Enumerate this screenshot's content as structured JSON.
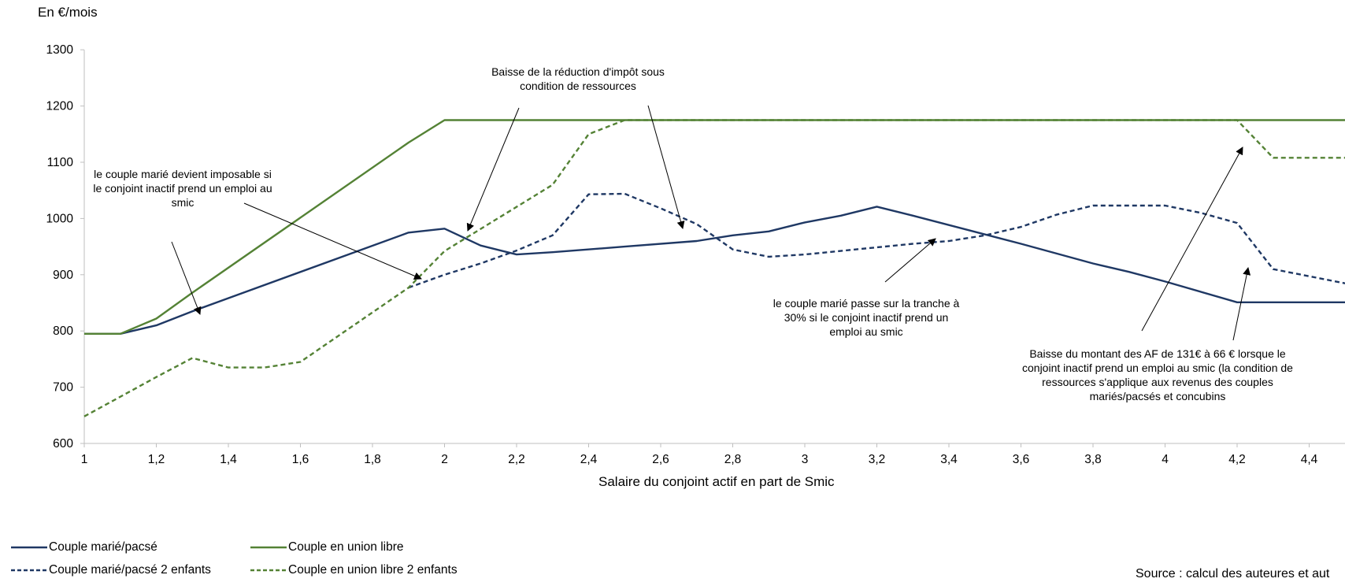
{
  "chart_data": {
    "type": "line",
    "ylabel": "En €/mois",
    "xlabel": "Salaire du conjoint actif en part de Smic",
    "xlim": [
      1,
      4.6
    ],
    "ylim": [
      600,
      1300
    ],
    "yticks": [
      600,
      700,
      800,
      900,
      1000,
      1100,
      1200,
      1300
    ],
    "xticks": [
      "1",
      "1,2",
      "1,4",
      "1,6",
      "1,8",
      "2",
      "2,2",
      "2,4",
      "2,6",
      "2,8",
      "3",
      "3,2",
      "3,4",
      "3,6",
      "3,8",
      "4",
      "4,2",
      "4,4"
    ],
    "xtick_values": [
      1,
      1.2,
      1.4,
      1.6,
      1.8,
      2,
      2.2,
      2.4,
      2.6,
      2.8,
      3,
      3.2,
      3.4,
      3.6,
      3.8,
      4,
      4.2,
      4.4
    ],
    "grid": false,
    "legend_position": "bottom",
    "series": [
      {
        "name": "Couple marié/pacsé",
        "color": "#1f3864",
        "dash": "solid",
        "points": [
          [
            1,
            795
          ],
          [
            1.1,
            795
          ],
          [
            1.2,
            810
          ],
          [
            1.3,
            835
          ],
          [
            1.9,
            975
          ],
          [
            2,
            982
          ],
          [
            2.1,
            952
          ],
          [
            2.2,
            936
          ],
          [
            2.3,
            940
          ],
          [
            2.5,
            950
          ],
          [
            2.7,
            960
          ],
          [
            2.8,
            970
          ],
          [
            2.9,
            977
          ],
          [
            3,
            993
          ],
          [
            3.1,
            1005
          ],
          [
            3.2,
            1021
          ],
          [
            3.3,
            1005
          ],
          [
            3.6,
            955
          ],
          [
            3.8,
            920
          ],
          [
            3.9,
            905
          ],
          [
            4,
            888
          ],
          [
            4.2,
            851
          ],
          [
            4.6,
            851
          ]
        ]
      },
      {
        "name": "Couple en union libre",
        "color": "#548235",
        "dash": "solid",
        "points": [
          [
            1,
            795
          ],
          [
            1.1,
            795
          ],
          [
            1.2,
            822
          ],
          [
            1.3,
            868
          ],
          [
            1.9,
            1135
          ],
          [
            2,
            1175
          ],
          [
            4.6,
            1175
          ]
        ]
      },
      {
        "name": "Couple marié/pacsé 2 enfants",
        "color": "#1f3864",
        "dash": "dashed",
        "points": [
          [
            1.9,
            877
          ],
          [
            2,
            900
          ],
          [
            2.1,
            920
          ],
          [
            2.2,
            943
          ],
          [
            2.3,
            970
          ],
          [
            2.4,
            1043
          ],
          [
            2.5,
            1044
          ],
          [
            2.6,
            1018
          ],
          [
            2.7,
            990
          ],
          [
            2.8,
            945
          ],
          [
            2.9,
            932
          ],
          [
            3,
            936
          ],
          [
            3.3,
            955
          ],
          [
            3.4,
            960
          ],
          [
            3.5,
            970
          ],
          [
            3.6,
            985
          ],
          [
            3.7,
            1007
          ],
          [
            3.8,
            1023
          ],
          [
            4,
            1023
          ],
          [
            4.1,
            1010
          ],
          [
            4.2,
            992
          ],
          [
            4.3,
            910
          ],
          [
            4.6,
            872
          ]
        ]
      },
      {
        "name": "Couple en union libre 2 enfants",
        "color": "#548235",
        "dash": "dashed",
        "points": [
          [
            1,
            648
          ],
          [
            1.1,
            683
          ],
          [
            1.2,
            718
          ],
          [
            1.3,
            752
          ],
          [
            1.4,
            735
          ],
          [
            1.5,
            735
          ],
          [
            1.6,
            745
          ],
          [
            1.9,
            877
          ],
          [
            2,
            942
          ],
          [
            2.3,
            1060
          ],
          [
            2.4,
            1150
          ],
          [
            2.5,
            1175
          ],
          [
            4.2,
            1175
          ],
          [
            4.3,
            1108
          ],
          [
            4.6,
            1108
          ]
        ]
      }
    ],
    "annotations": [
      {
        "text": "le couple marié devient imposable si le conjoint inactif prend un emploi au smic"
      },
      {
        "text": "Baisse de la réduction d'impôt sous condition de ressources"
      },
      {
        "text": "le couple marié passe sur la tranche à 30% si le conjoint inactif prend un emploi au smic"
      },
      {
        "text": "Baisse du montant des AF de 131€ à 66 € lorsque le conjoint inactif prend un emploi au smic (la condition de ressources s'applique aux revenus des couples mariés/pacsés et concubins"
      }
    ],
    "source": "Source : calcul des auteures et aut"
  }
}
